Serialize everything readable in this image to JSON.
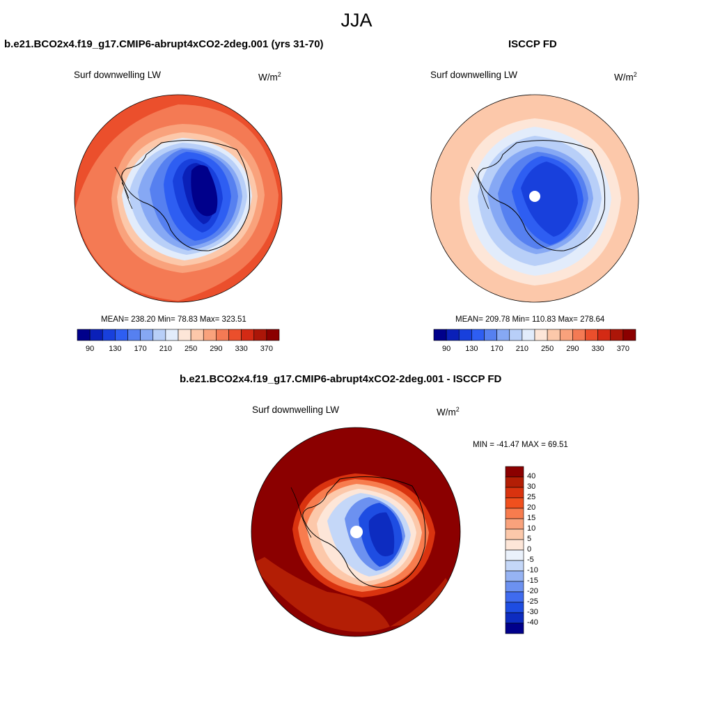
{
  "season": "JJA",
  "panels": [
    {
      "title": "b.e21.BCO2x4.f19_g17.CMIP6-abrupt4xCO2-2deg.001 (yrs 31-70)",
      "variable": "Surf downwelling LW",
      "units_base": "W/m",
      "units_exp": "2",
      "stats": "MEAN= 238.20  Min=  78.83  Max= 323.51"
    },
    {
      "title": "ISCCP FD",
      "variable": "Surf downwelling LW",
      "units_base": "W/m",
      "units_exp": "2",
      "stats": "MEAN= 209.78  Min= 110.83  Max= 278.64"
    },
    {
      "title": "b.e21.BCO2x4.f19_g17.CMIP6-abrupt4xCO2-2deg.001 - ISCCP FD",
      "variable": "Surf downwelling LW",
      "units_base": "W/m",
      "units_exp": "2",
      "stats": "MIN = -41.47 MAX =  69.51"
    }
  ],
  "colorbar_abs": {
    "labels": [
      "90",
      "130",
      "170",
      "210",
      "250",
      "290",
      "330",
      "370"
    ],
    "colors": [
      "#00008b",
      "#0a20b8",
      "#1840dc",
      "#2e5ef2",
      "#5680f0",
      "#86a8f4",
      "#b8cff8",
      "#e2ecfb",
      "#fde6d8",
      "#fcc8aa",
      "#f9a27c",
      "#f47a54",
      "#eb4f2c",
      "#d42a14",
      "#ac1608",
      "#8b0000"
    ]
  },
  "colorbar_diff": {
    "labels": [
      "40",
      "30",
      "25",
      "20",
      "15",
      "10",
      "5",
      "0",
      "-5",
      "-10",
      "-15",
      "-20",
      "-25",
      "-30",
      "-40"
    ],
    "colors": [
      "#8b0000",
      "#b31e05",
      "#d9330f",
      "#f0501e",
      "#f77c4e",
      "#f9a27c",
      "#fcc8aa",
      "#fde6d8",
      "#eaf1fb",
      "#c4d7f8",
      "#96b3f3",
      "#6c91f0",
      "#3f6bef",
      "#1e4de2",
      "#0d2cc0",
      "#00008b"
    ]
  }
}
